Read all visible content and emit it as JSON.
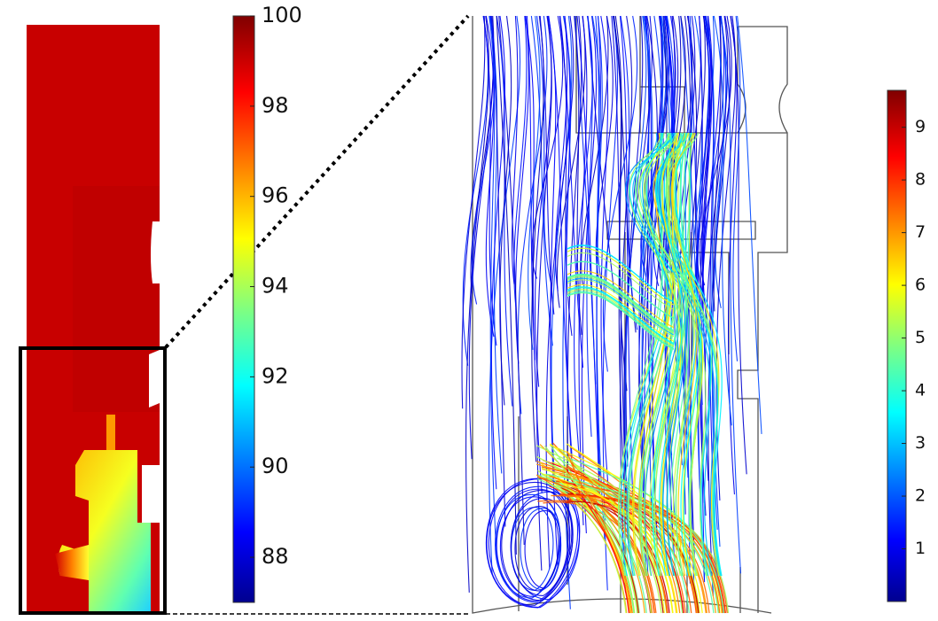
{
  "colorbars": [
    {
      "lim": [
        87,
        100
      ],
      "ticks": [
        88,
        90,
        92,
        94,
        96,
        98,
        100
      ]
    },
    {
      "lim": [
        0,
        9.7
      ],
      "ticks": [
        1,
        2,
        3,
        4,
        5,
        6,
        7,
        8,
        9
      ]
    }
  ]
}
